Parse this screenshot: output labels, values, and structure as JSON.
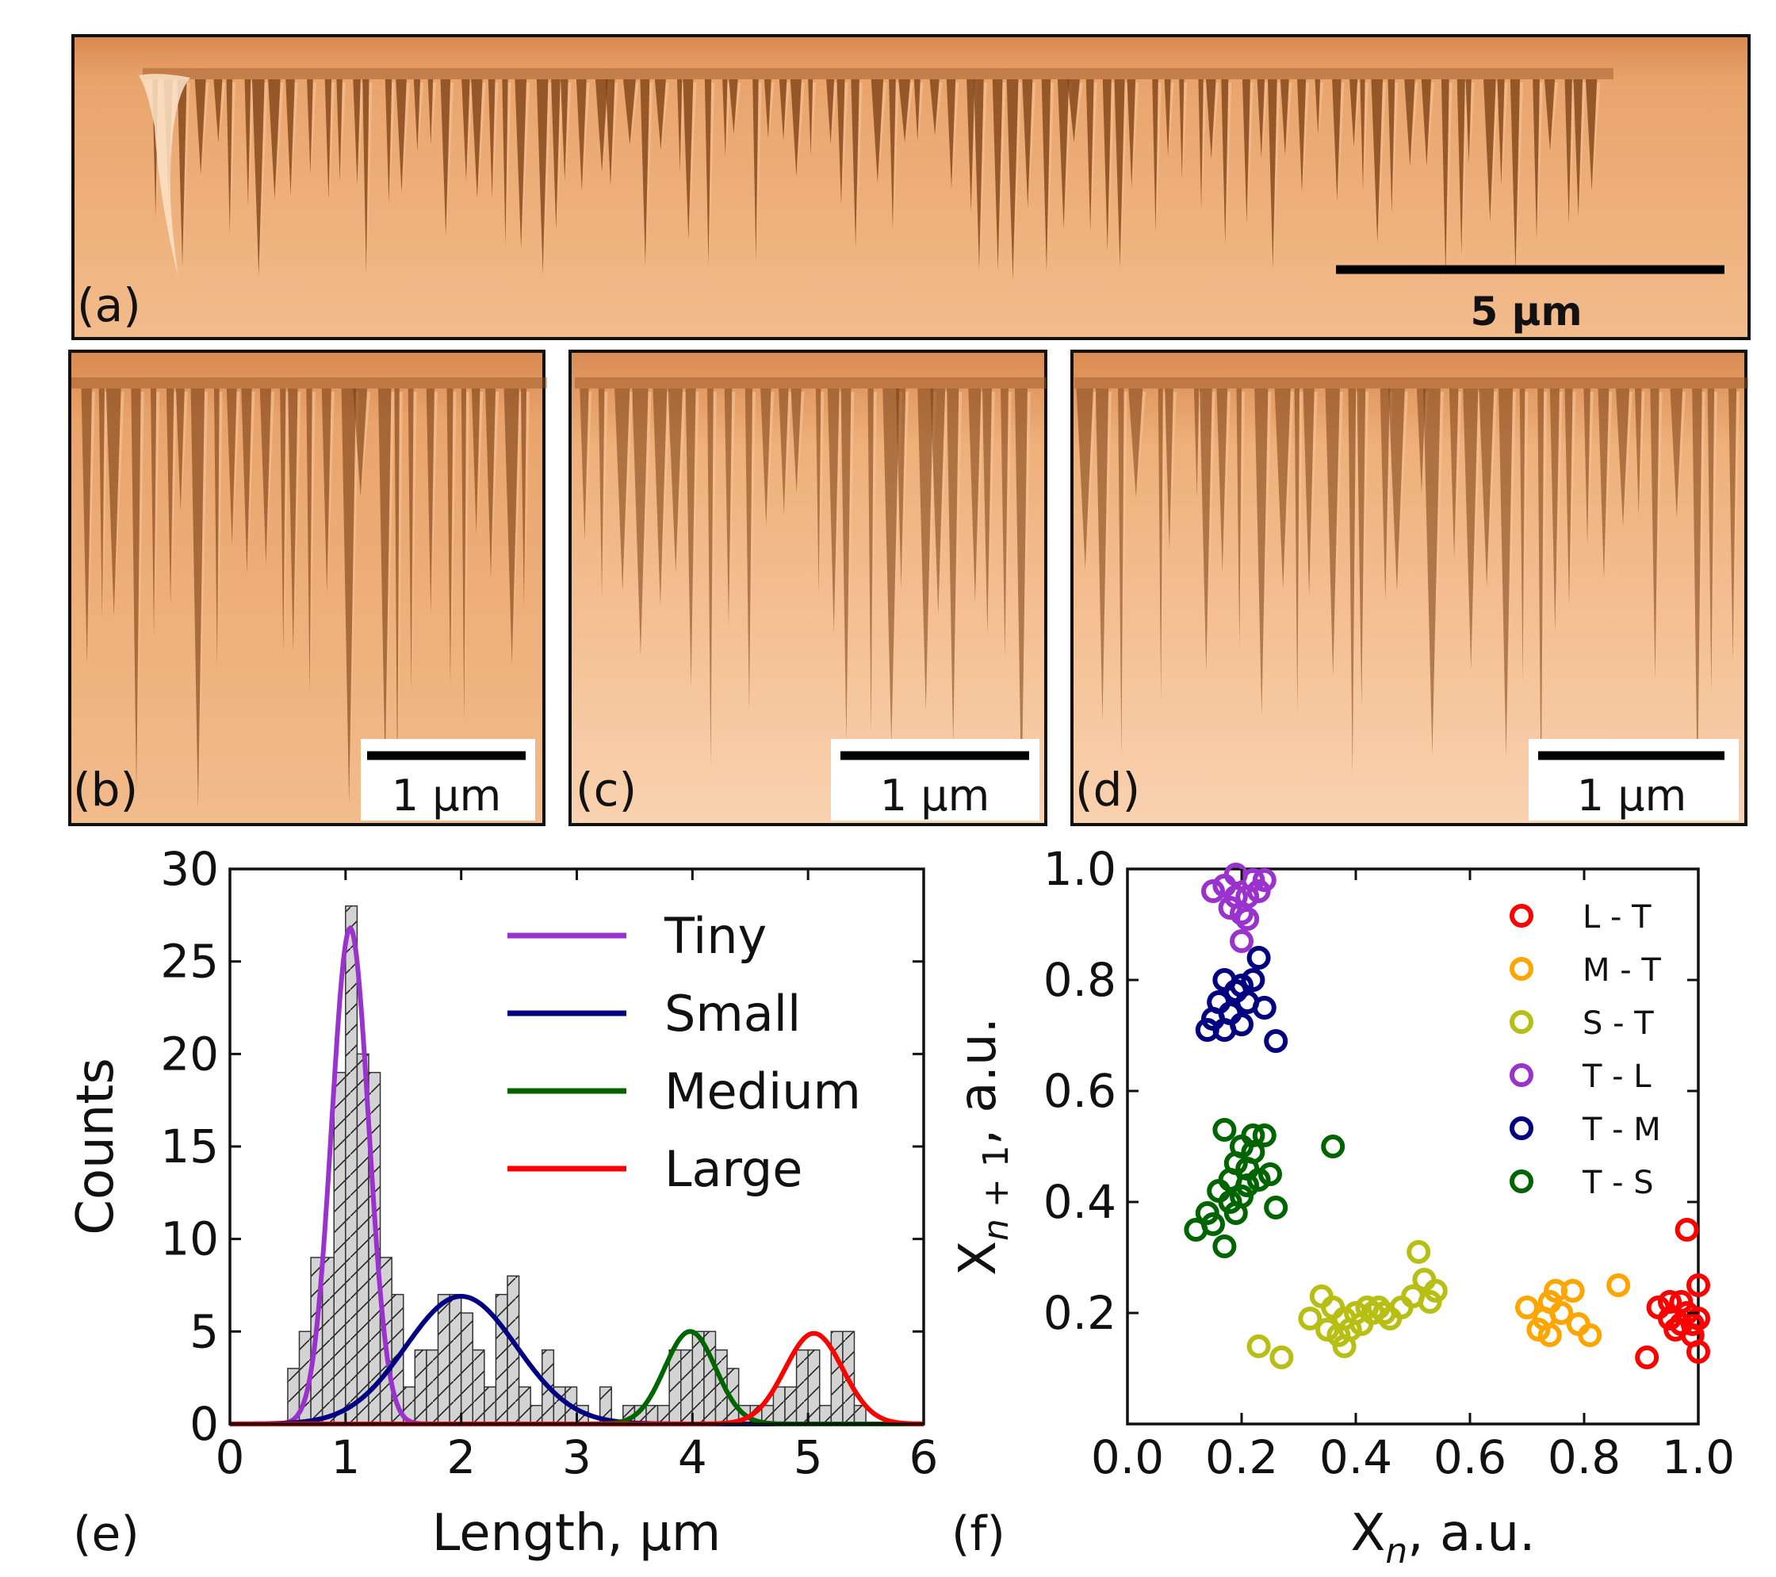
{
  "panels": {
    "a": {
      "label": "(a)",
      "scale": "5 µm"
    },
    "b": {
      "label": "(b)",
      "scale": "1 µm"
    },
    "c": {
      "label": "(c)",
      "scale": "1 µm"
    },
    "d": {
      "label": "(d)",
      "scale": "1 µm"
    }
  },
  "colors": {
    "sem_bg": "#e9a46c",
    "sem_light": "#f6c59a",
    "sem_dark": "#7a3e12",
    "tiny": "#9a32cd",
    "small": "#000080",
    "medium": "#006400",
    "large": "#ff0000",
    "LT": "#ff0000",
    "MT": "#ffa500",
    "ST": "#b8bf14",
    "TL": "#9a32cd",
    "TM": "#000080",
    "TS": "#006400"
  },
  "chart_data": [
    {
      "panel_label": "(e)",
      "type": "bar",
      "xlabel": "Length, µm",
      "ylabel": "Counts",
      "xlim": [
        0,
        6
      ],
      "ylim": [
        0,
        30
      ],
      "xticks": [
        "0",
        "1",
        "2",
        "3",
        "4",
        "5",
        "6"
      ],
      "yticks": [
        "0",
        "5",
        "10",
        "15",
        "20",
        "25",
        "30"
      ],
      "bin_width": 0.1,
      "bin_centers": [
        0.55,
        0.65,
        0.75,
        0.85,
        0.95,
        1.05,
        1.15,
        1.25,
        1.35,
        1.45,
        1.55,
        1.65,
        1.75,
        1.85,
        1.95,
        2.05,
        2.15,
        2.25,
        2.35,
        2.45,
        2.55,
        2.65,
        2.75,
        2.85,
        2.95,
        3.05,
        3.15,
        3.25,
        3.35,
        3.45,
        3.55,
        3.65,
        3.75,
        3.85,
        3.95,
        4.05,
        4.15,
        4.25,
        4.35,
        4.45,
        4.55,
        4.65,
        4.75,
        4.85,
        4.95,
        5.05,
        5.15,
        5.25,
        5.35,
        5.45,
        5.55
      ],
      "counts": [
        3,
        5,
        9,
        9,
        19,
        28,
        20,
        19,
        9,
        7,
        2,
        4,
        4,
        7,
        7,
        6,
        4,
        2,
        7,
        8,
        2,
        1,
        4,
        2,
        2,
        1,
        0,
        2,
        0,
        1,
        1,
        1,
        1,
        4,
        4,
        5,
        5,
        4,
        3,
        1,
        1,
        1,
        2,
        2,
        4,
        4,
        1,
        5,
        5,
        1,
        0
      ],
      "fits": [
        {
          "name": "Tiny",
          "mu": 1.04,
          "sigma": 0.16,
          "amp": 26.8
        },
        {
          "name": "Small",
          "mu": 2.0,
          "sigma": 0.48,
          "amp": 6.9
        },
        {
          "name": "Medium",
          "mu": 3.98,
          "sigma": 0.22,
          "amp": 5.0
        },
        {
          "name": "Large",
          "mu": 5.05,
          "sigma": 0.25,
          "amp": 4.9
        }
      ],
      "legend": [
        "Tiny",
        "Small",
        "Medium",
        "Large"
      ],
      "legend_position": "top-right"
    },
    {
      "panel_label": "(f)",
      "type": "scatter",
      "xlabel": "Xn, a.u.",
      "ylabel": "Xn+1, a.u.",
      "xlim": [
        0,
        1
      ],
      "ylim": [
        0,
        1
      ],
      "xticks": [
        "0.0",
        "0.2",
        "0.4",
        "0.6",
        "0.8",
        "1.0"
      ],
      "yticks": [
        "0.2",
        "0.4",
        "0.6",
        "0.8",
        "1.0"
      ],
      "legend_position": "top-right",
      "series": [
        {
          "name": "L - T",
          "key": "LT",
          "points": [
            [
              0.91,
              0.12
            ],
            [
              0.93,
              0.21
            ],
            [
              0.95,
              0.19
            ],
            [
              0.96,
              0.17
            ],
            [
              0.97,
              0.22
            ],
            [
              0.98,
              0.2
            ],
            [
              0.99,
              0.18
            ],
            [
              0.98,
              0.35
            ],
            [
              0.99,
              0.16
            ],
            [
              1.0,
              0.25
            ],
            [
              1.0,
              0.13
            ],
            [
              0.95,
              0.22
            ],
            [
              0.97,
              0.18
            ],
            [
              1.0,
              0.19
            ]
          ]
        },
        {
          "name": "M - T",
          "key": "MT",
          "points": [
            [
              0.7,
              0.21
            ],
            [
              0.72,
              0.17
            ],
            [
              0.73,
              0.19
            ],
            [
              0.74,
              0.22
            ],
            [
              0.75,
              0.24
            ],
            [
              0.76,
              0.2
            ],
            [
              0.78,
              0.24
            ],
            [
              0.79,
              0.18
            ],
            [
              0.81,
              0.16
            ],
            [
              0.86,
              0.25
            ],
            [
              0.74,
              0.16
            ]
          ]
        },
        {
          "name": "S - T",
          "key": "ST",
          "points": [
            [
              0.23,
              0.14
            ],
            [
              0.27,
              0.12
            ],
            [
              0.32,
              0.19
            ],
            [
              0.34,
              0.23
            ],
            [
              0.35,
              0.17
            ],
            [
              0.36,
              0.21
            ],
            [
              0.37,
              0.16
            ],
            [
              0.38,
              0.19
            ],
            [
              0.38,
              0.14
            ],
            [
              0.4,
              0.2
            ],
            [
              0.41,
              0.18
            ],
            [
              0.42,
              0.21
            ],
            [
              0.43,
              0.2
            ],
            [
              0.44,
              0.21
            ],
            [
              0.46,
              0.19
            ],
            [
              0.48,
              0.21
            ],
            [
              0.5,
              0.23
            ],
            [
              0.51,
              0.31
            ],
            [
              0.52,
              0.26
            ],
            [
              0.53,
              0.22
            ],
            [
              0.54,
              0.24
            ],
            [
              0.39,
              0.17
            ],
            [
              0.45,
              0.2
            ]
          ]
        },
        {
          "name": "T - L",
          "key": "TL",
          "points": [
            [
              0.15,
              0.96
            ],
            [
              0.17,
              0.97
            ],
            [
              0.18,
              0.93
            ],
            [
              0.19,
              0.99
            ],
            [
              0.2,
              0.92
            ],
            [
              0.2,
              0.87
            ],
            [
              0.21,
              0.95
            ],
            [
              0.22,
              0.98
            ],
            [
              0.23,
              0.96
            ],
            [
              0.24,
              0.98
            ],
            [
              0.19,
              0.95
            ],
            [
              0.21,
              0.91
            ]
          ]
        },
        {
          "name": "T - M",
          "key": "TM",
          "points": [
            [
              0.14,
              0.71
            ],
            [
              0.15,
              0.73
            ],
            [
              0.16,
              0.76
            ],
            [
              0.17,
              0.8
            ],
            [
              0.18,
              0.74
            ],
            [
              0.19,
              0.78
            ],
            [
              0.2,
              0.72
            ],
            [
              0.21,
              0.76
            ],
            [
              0.22,
              0.8
            ],
            [
              0.23,
              0.84
            ],
            [
              0.24,
              0.75
            ],
            [
              0.26,
              0.69
            ],
            [
              0.17,
              0.71
            ],
            [
              0.2,
              0.79
            ]
          ]
        },
        {
          "name": "T - S",
          "key": "TS",
          "points": [
            [
              0.12,
              0.35
            ],
            [
              0.14,
              0.38
            ],
            [
              0.15,
              0.36
            ],
            [
              0.16,
              0.42
            ],
            [
              0.17,
              0.32
            ],
            [
              0.17,
              0.53
            ],
            [
              0.18,
              0.44
            ],
            [
              0.19,
              0.38
            ],
            [
              0.19,
              0.47
            ],
            [
              0.2,
              0.41
            ],
            [
              0.2,
              0.5
            ],
            [
              0.21,
              0.46
            ],
            [
              0.22,
              0.49
            ],
            [
              0.22,
              0.52
            ],
            [
              0.23,
              0.44
            ],
            [
              0.24,
              0.52
            ],
            [
              0.25,
              0.45
            ],
            [
              0.26,
              0.39
            ],
            [
              0.36,
              0.5
            ],
            [
              0.18,
              0.4
            ],
            [
              0.21,
              0.43
            ]
          ]
        }
      ]
    }
  ]
}
